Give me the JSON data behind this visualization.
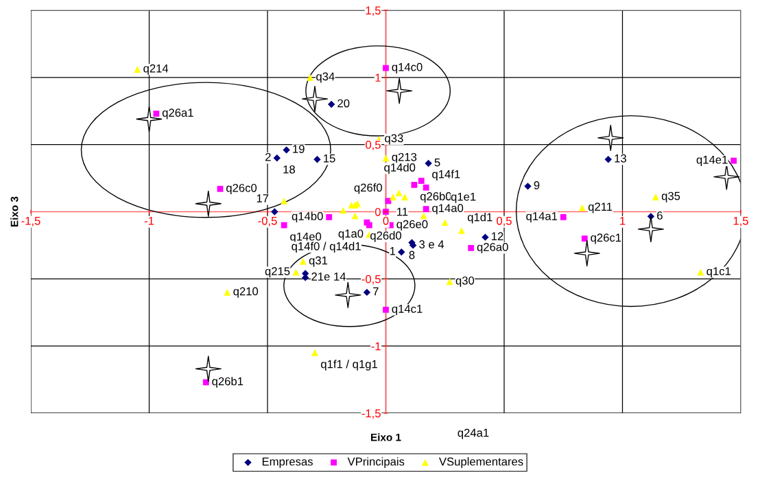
{
  "chart_data": {
    "type": "scatter",
    "xlabel": "Eixo 1",
    "ylabel": "Eixo 3",
    "xlim": [
      -1.5,
      1.5
    ],
    "ylim": [
      -1.5,
      1.5
    ],
    "xticks": [
      {
        "value": -1.5,
        "label": "-1,5"
      },
      -1,
      {
        "value": -0.5,
        "label": "-0,5"
      },
      0,
      {
        "value": 0.5,
        "label": "0,5"
      },
      1,
      {
        "value": 1.5,
        "label": "1,5"
      }
    ],
    "yticks": [
      {
        "value": -1.5,
        "label": "-1,5"
      },
      -1,
      {
        "value": -0.5,
        "label": "-0,5"
      },
      0,
      {
        "value": 0.5,
        "label": "0,5"
      },
      1,
      {
        "value": 1.5,
        "label": "1,5"
      }
    ],
    "grid": true,
    "legend": "bottom",
    "series": [
      {
        "name": "Empresas",
        "color": "#000080",
        "marker": "diamond",
        "x": [
          -0.23,
          -0.42,
          -0.46,
          -0.29,
          -0.47,
          0.18,
          0.11,
          0.115,
          0.066,
          0.42,
          -0.34,
          -0.34,
          -0.08,
          0.6,
          0.94,
          1.12
        ],
        "values": [
          0.8,
          0.46,
          0.4,
          0.39,
          0.0,
          0.36,
          -0.23,
          -0.25,
          -0.3,
          -0.19,
          -0.46,
          -0.49,
          -0.6,
          0.19,
          0.39,
          -0.035
        ]
      },
      {
        "name": "VPrincipais",
        "color": "#ff00ff",
        "marker": "square",
        "x": [
          0.0,
          -0.97,
          -0.7,
          -0.43,
          -0.24,
          -0.08,
          -0.07,
          0.01,
          0.0,
          0.02,
          0.12,
          0.15,
          0.17,
          0.17,
          0.36,
          0.0,
          -0.76,
          0.75,
          0.84,
          1.47
        ],
        "values": [
          1.07,
          0.73,
          0.17,
          -0.1,
          -0.04,
          -0.08,
          -0.1,
          0.08,
          0.0,
          -0.1,
          0.2,
          0.23,
          0.18,
          0.02,
          -0.27,
          -0.73,
          -1.27,
          -0.04,
          -0.2,
          0.38
        ]
      },
      {
        "name": "VSuplementares",
        "color": "#ffff00",
        "marker": "triangle",
        "x": [
          -1.05,
          -0.32,
          -0.03,
          0.0,
          0.03,
          0.055,
          0.08,
          -0.43,
          -0.18,
          -0.145,
          -0.13,
          -0.12,
          -0.13,
          -0.07,
          0.16,
          0.25,
          0.32,
          -0.35,
          -0.38,
          0.27,
          -0.67,
          -0.3,
          0.83,
          1.14,
          1.33
        ],
        "values": [
          1.06,
          1.0,
          0.54,
          0.4,
          0.11,
          0.14,
          0.11,
          0.08,
          0.01,
          0.05,
          0.05,
          0.06,
          -0.03,
          -0.17,
          -0.03,
          -0.08,
          -0.14,
          -0.37,
          -0.45,
          -0.52,
          -0.6,
          -1.05,
          0.03,
          0.11,
          -0.45
        ]
      },
      {
        "color": "#ffffff",
        "marker": "star",
        "x": [
          -0.3,
          0.057,
          -1.0,
          -0.75,
          -0.16,
          -0.75,
          0.95,
          1.44,
          1.12,
          0.85
        ],
        "values": [
          0.84,
          0.9,
          0.69,
          0.06,
          -0.62,
          -1.17,
          0.55,
          0.26,
          -0.13,
          -0.31
        ]
      }
    ],
    "annotations": [
      {
        "text": "q214",
        "x": -1.05,
        "y": 1.06
      },
      {
        "text": "q34",
        "x": -0.32,
        "y": 1.0
      },
      {
        "text": "20",
        "x": -0.23,
        "y": 0.8
      },
      {
        "text": "q26a1",
        "x": -0.97,
        "y": 0.73
      },
      {
        "text": "q33",
        "x": -0.03,
        "y": 0.54
      },
      {
        "text": "19",
        "x": -0.42,
        "y": 0.46
      },
      {
        "text": "18",
        "x": -0.46,
        "y": 0.4
      },
      {
        "text": "2",
        "x": -0.46,
        "y": 0.4
      },
      {
        "text": "15",
        "x": -0.29,
        "y": 0.39
      },
      {
        "text": "q213",
        "x": 0.0,
        "y": 0.4
      },
      {
        "text": "5",
        "x": 0.18,
        "y": 0.36
      },
      {
        "text": "q14d0",
        "x": 0.15,
        "y": 0.23
      },
      {
        "text": "q26b0",
        "x": 0.12,
        "y": 0.2
      },
      {
        "text": "q14f1",
        "x": 0.17,
        "y": 0.18
      },
      {
        "text": "q26f0",
        "x": 0.01,
        "y": 0.08
      },
      {
        "text": "q26d0",
        "x": 0.0,
        "y": 0.0
      },
      {
        "text": "q14a0",
        "x": 0.17,
        "y": 0.02
      },
      {
        "text": "q14b0",
        "x": -0.24,
        "y": -0.04
      },
      {
        "text": "17",
        "x": -0.47,
        "y": 0.0
      },
      {
        "text": "q26c0",
        "x": -0.7,
        "y": 0.17
      },
      {
        "text": "q14e0",
        "x": -0.43,
        "y": -0.1
      },
      {
        "text": "q14f0 / q14d1",
        "x": -0.08,
        "y": -0.08
      },
      {
        "text": "q1a0",
        "x": -0.07,
        "y": -0.17
      },
      {
        "text": "q26e0",
        "x": 0.02,
        "y": -0.1
      },
      {
        "text": "11",
        "x": 0.02,
        "y": -0.1
      },
      {
        "text": "8",
        "x": 0.11,
        "y": -0.23
      },
      {
        "text": "3 e 4",
        "x": 0.115,
        "y": -0.25
      },
      {
        "text": "1",
        "x": 0.066,
        "y": -0.3
      },
      {
        "text": "q1e1",
        "x": 0.25,
        "y": -0.08
      },
      {
        "text": "q1d1",
        "x": 0.32,
        "y": -0.14
      },
      {
        "text": "12",
        "x": 0.42,
        "y": -0.19
      },
      {
        "text": "q26a0",
        "x": 0.36,
        "y": -0.27
      },
      {
        "text": "q31",
        "x": -0.35,
        "y": -0.37
      },
      {
        "text": "q215",
        "x": -0.38,
        "y": -0.45
      },
      {
        "text": "21e 14",
        "x": -0.34,
        "y": -0.49
      },
      {
        "text": "7",
        "x": -0.08,
        "y": -0.6
      },
      {
        "text": "q14c1",
        "x": 0.0,
        "y": -0.73
      },
      {
        "text": "q30",
        "x": 0.27,
        "y": -0.52
      },
      {
        "text": "q210",
        "x": -0.67,
        "y": -0.6
      },
      {
        "text": "q1f1 / q1g1",
        "x": -0.3,
        "y": -1.05
      },
      {
        "text": "q26b1",
        "x": -0.76,
        "y": -1.27
      },
      {
        "text": "q14c0",
        "x": 0.0,
        "y": 1.07
      },
      {
        "text": "9",
        "x": 0.6,
        "y": 0.19
      },
      {
        "text": "13",
        "x": 0.94,
        "y": 0.39
      },
      {
        "text": "q14e1",
        "x": 1.47,
        "y": 0.38
      },
      {
        "text": "q35",
        "x": 1.14,
        "y": 0.11
      },
      {
        "text": "q211",
        "x": 0.83,
        "y": 0.03
      },
      {
        "text": "q14a1",
        "x": 0.75,
        "y": -0.04
      },
      {
        "text": "6",
        "x": 1.12,
        "y": -0.035
      },
      {
        "text": "q26c1",
        "x": 0.84,
        "y": -0.2
      },
      {
        "text": "q1c1",
        "x": 1.33,
        "y": -0.45
      },
      "q24a1"
    ]
  }
}
